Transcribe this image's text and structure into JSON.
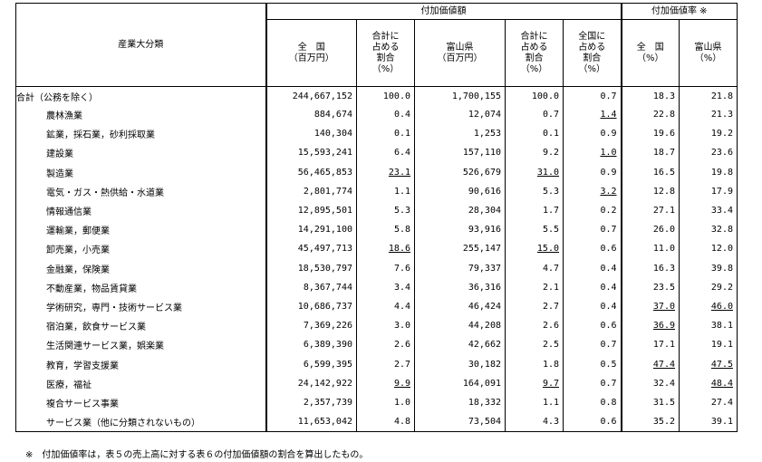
{
  "headers": {
    "category": "産業大分類",
    "group_added_value": "付加価値額",
    "group_rate": "付加価値率 ※",
    "national": "全　国\n（百万円）",
    "national_share": "合計に\n占める\n割合\n（%）",
    "toyama": "富山県\n（百万円）",
    "toyama_share": "合計に\n占める\n割合\n（%）",
    "toyama_vs_national": "全国に\n占める\n割合\n（%）",
    "rate_national": "全　国\n（%）",
    "rate_toyama": "富山県\n（%）"
  },
  "rows": [
    {
      "name": "合計（公務を除く）",
      "national": "244,667,152",
      "national_share": "100.0",
      "toyama": "1,700,155",
      "toyama_share": "100.0",
      "vs_national": "0.7",
      "rate_national": "18.3",
      "rate_toyama": "21.8",
      "u": []
    },
    {
      "name": "農林漁業",
      "national": "884,674",
      "national_share": "0.4",
      "toyama": "12,074",
      "toyama_share": "0.7",
      "vs_national": "1.4",
      "rate_national": "22.8",
      "rate_toyama": "21.3",
      "u": [
        "vs_national"
      ]
    },
    {
      "name": "鉱業，採石業，砂利採取業",
      "national": "140,304",
      "national_share": "0.1",
      "toyama": "1,253",
      "toyama_share": "0.1",
      "vs_national": "0.9",
      "rate_national": "19.6",
      "rate_toyama": "19.2",
      "u": []
    },
    {
      "name": "建設業",
      "national": "15,593,241",
      "national_share": "6.4",
      "toyama": "157,110",
      "toyama_share": "9.2",
      "vs_national": "1.0",
      "rate_national": "18.7",
      "rate_toyama": "23.6",
      "u": [
        "vs_national"
      ]
    },
    {
      "name": "製造業",
      "national": "56,465,853",
      "national_share": "23.1",
      "toyama": "526,679",
      "toyama_share": "31.0",
      "vs_national": "0.9",
      "rate_national": "16.5",
      "rate_toyama": "19.8",
      "u": [
        "national_share",
        "toyama_share"
      ]
    },
    {
      "name": "電気・ガス・熱供給・水道業",
      "national": "2,801,774",
      "national_share": "1.1",
      "toyama": "90,616",
      "toyama_share": "5.3",
      "vs_national": "3.2",
      "rate_national": "12.8",
      "rate_toyama": "17.9",
      "u": [
        "vs_national"
      ]
    },
    {
      "name": "情報通信業",
      "national": "12,895,501",
      "national_share": "5.3",
      "toyama": "28,304",
      "toyama_share": "1.7",
      "vs_national": "0.2",
      "rate_national": "27.1",
      "rate_toyama": "33.4",
      "u": []
    },
    {
      "name": "運輸業，郵便業",
      "national": "14,291,100",
      "national_share": "5.8",
      "toyama": "93,916",
      "toyama_share": "5.5",
      "vs_national": "0.7",
      "rate_national": "26.0",
      "rate_toyama": "32.8",
      "u": []
    },
    {
      "name": "卸売業，小売業",
      "national": "45,497,713",
      "national_share": "18.6",
      "toyama": "255,147",
      "toyama_share": "15.0",
      "vs_national": "0.6",
      "rate_national": "11.0",
      "rate_toyama": "12.0",
      "u": [
        "national_share",
        "toyama_share"
      ]
    },
    {
      "name": "金融業，保険業",
      "national": "18,530,797",
      "national_share": "7.6",
      "toyama": "79,337",
      "toyama_share": "4.7",
      "vs_national": "0.4",
      "rate_national": "16.3",
      "rate_toyama": "39.8",
      "u": []
    },
    {
      "name": "不動産業，物品賃貸業",
      "national": "8,367,744",
      "national_share": "3.4",
      "toyama": "36,316",
      "toyama_share": "2.1",
      "vs_national": "0.4",
      "rate_national": "23.5",
      "rate_toyama": "29.2",
      "u": []
    },
    {
      "name": "学術研究，専門・技術サービス業",
      "national": "10,686,737",
      "national_share": "4.4",
      "toyama": "46,424",
      "toyama_share": "2.7",
      "vs_national": "0.4",
      "rate_national": "37.0",
      "rate_toyama": "46.0",
      "u": [
        "rate_national",
        "rate_toyama"
      ]
    },
    {
      "name": "宿泊業，飲食サービス業",
      "national": "7,369,226",
      "national_share": "3.0",
      "toyama": "44,208",
      "toyama_share": "2.6",
      "vs_national": "0.6",
      "rate_national": "36.9",
      "rate_toyama": "38.1",
      "u": [
        "rate_national"
      ]
    },
    {
      "name": "生活関連サービス業，娯楽業",
      "national": "6,389,390",
      "national_share": "2.6",
      "toyama": "42,662",
      "toyama_share": "2.5",
      "vs_national": "0.7",
      "rate_national": "17.1",
      "rate_toyama": "19.1",
      "u": []
    },
    {
      "name": "教育，学習支援業",
      "national": "6,599,395",
      "national_share": "2.7",
      "toyama": "30,182",
      "toyama_share": "1.8",
      "vs_national": "0.5",
      "rate_national": "47.4",
      "rate_toyama": "47.5",
      "u": [
        "rate_national",
        "rate_toyama"
      ]
    },
    {
      "name": "医療，福祉",
      "national": "24,142,922",
      "national_share": "9.9",
      "toyama": "164,091",
      "toyama_share": "9.7",
      "vs_national": "0.7",
      "rate_national": "32.4",
      "rate_toyama": "48.4",
      "u": [
        "national_share",
        "toyama_share",
        "rate_toyama"
      ]
    },
    {
      "name": "複合サービス事業",
      "national": "2,357,739",
      "national_share": "1.0",
      "toyama": "18,332",
      "toyama_share": "1.1",
      "vs_national": "0.8",
      "rate_national": "31.5",
      "rate_toyama": "27.4",
      "u": []
    },
    {
      "name": "サービス業（他に分類されないもの）",
      "national": "11,653,042",
      "national_share": "4.8",
      "toyama": "73,504",
      "toyama_share": "4.3",
      "vs_national": "0.6",
      "rate_national": "35.2",
      "rate_toyama": "39.1",
      "u": []
    }
  ],
  "note": "※　付加価値率は，表５の売上高に対する表６の付加価値額の割合を算出したもの。"
}
